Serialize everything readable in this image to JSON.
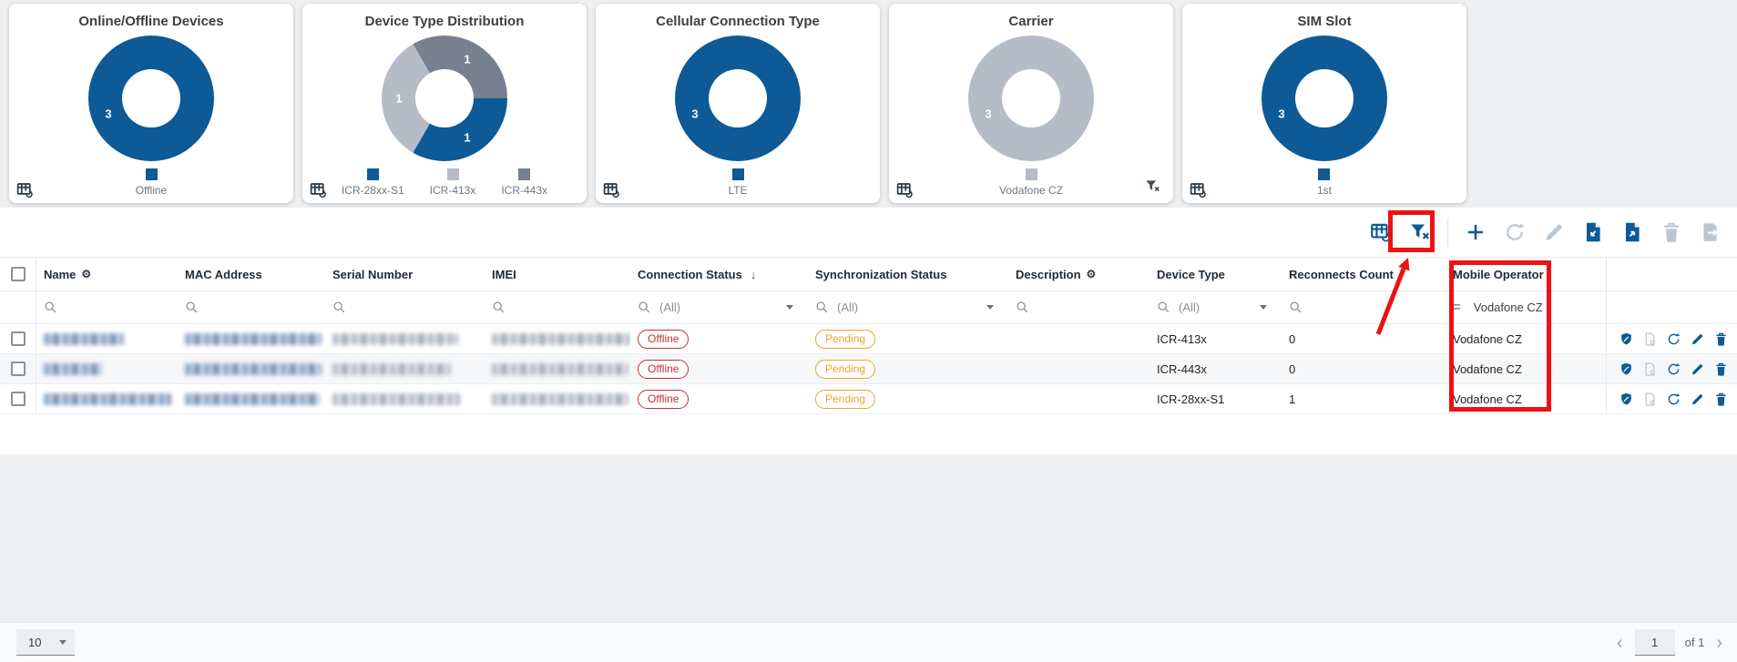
{
  "colors": {
    "primary": "#0d5a96",
    "seg_dark": "#76808f",
    "seg_light": "#b5bcc8",
    "disabled_icon": "#b9c7d2",
    "annotation": "#ee1111",
    "offline": "#c62f2f",
    "pending": "#f0a22e"
  },
  "cards": [
    {
      "title": "Online/Offline Devices",
      "donut": {
        "start": 0,
        "segments": [
          {
            "label": "Offline",
            "value": 3,
            "color": "primary",
            "angle": 250
          }
        ]
      },
      "legend": [
        {
          "label": "Offline",
          "color": "primary"
        }
      ],
      "corner_icon": "grid-sync-icon",
      "filter_icon": false
    },
    {
      "title": "Device Type Distribution",
      "donut": {
        "start": -30,
        "segments": [
          {
            "label": "ICR-443x",
            "value": 1,
            "color": "seg_dark",
            "angle": 30
          },
          {
            "label": "ICR-28xx-S1",
            "value": 1,
            "color": "primary",
            "angle": 150
          },
          {
            "label": "ICR-413x",
            "value": 1,
            "color": "seg_light",
            "angle": 270
          }
        ]
      },
      "legend": [
        {
          "label": "ICR-28xx-S1",
          "color": "primary"
        },
        {
          "label": "ICR-413x",
          "color": "seg_light"
        },
        {
          "label": "ICR-443x",
          "color": "seg_dark"
        }
      ],
      "corner_icon": "grid-sync-icon",
      "filter_icon": false
    },
    {
      "title": "Cellular Connection Type",
      "donut": {
        "start": 0,
        "segments": [
          {
            "label": "LTE",
            "value": 3,
            "color": "primary",
            "angle": 250
          }
        ]
      },
      "legend": [
        {
          "label": "LTE",
          "color": "primary"
        }
      ],
      "corner_icon": "grid-sync-icon",
      "filter_icon": false
    },
    {
      "title": "Carrier",
      "donut": {
        "start": 0,
        "segments": [
          {
            "label": "Vodafone CZ",
            "value": 3,
            "color": "seg_light",
            "angle": 250
          }
        ]
      },
      "legend": [
        {
          "label": "Vodafone CZ",
          "color": "seg_light"
        }
      ],
      "corner_icon": "grid-sync-icon",
      "filter_icon": true
    },
    {
      "title": "SIM Slot",
      "donut": {
        "start": 0,
        "segments": [
          {
            "label": "1st",
            "value": 3,
            "color": "primary",
            "angle": 250
          }
        ]
      },
      "legend": [
        {
          "label": "1st",
          "color": "primary"
        }
      ],
      "corner_icon": "grid-sync-icon",
      "filter_icon": false
    }
  ],
  "toolbar": {
    "icons": [
      {
        "name": "table-settings-sync-icon",
        "icon": "grid",
        "enabled": true
      },
      {
        "name": "clear-filters-icon",
        "icon": "filterx",
        "enabled": true,
        "annotated": true
      },
      {
        "divider": true
      },
      {
        "name": "add-device-icon",
        "icon": "plus",
        "enabled": true
      },
      {
        "name": "refresh-icon",
        "icon": "refresh",
        "enabled": false
      },
      {
        "name": "edit-icon",
        "icon": "pencil",
        "enabled": false
      },
      {
        "name": "import-file-icon",
        "icon": "docin",
        "enabled": true
      },
      {
        "name": "export-file-icon",
        "icon": "docout",
        "enabled": true
      },
      {
        "name": "delete-icon",
        "icon": "trash",
        "enabled": false
      },
      {
        "name": "save-file-icon",
        "icon": "docright",
        "enabled": false
      }
    ]
  },
  "table": {
    "columns": [
      {
        "key": "name",
        "label": "Name",
        "gear": true,
        "filter": "search"
      },
      {
        "key": "mac",
        "label": "MAC Address",
        "filter": "search"
      },
      {
        "key": "serial",
        "label": "Serial Number",
        "filter": "search"
      },
      {
        "key": "imei",
        "label": "IMEI",
        "filter": "search"
      },
      {
        "key": "connection_status",
        "label": "Connection Status",
        "sort": "desc",
        "filter": "select",
        "filter_value": "(All)"
      },
      {
        "key": "sync_status",
        "label": "Synchronization Status",
        "filter": "select",
        "filter_value": "(All)"
      },
      {
        "key": "description",
        "label": "Description",
        "gear": true,
        "filter": "search"
      },
      {
        "key": "device_type",
        "label": "Device Type",
        "filter": "select",
        "filter_value": "(All)"
      },
      {
        "key": "reconnects",
        "label": "Reconnects Count",
        "filter": "search"
      },
      {
        "key": "mobile_operator",
        "label": "Mobile Operator",
        "filter": "equals",
        "filter_value": "Vodafone CZ"
      }
    ],
    "rows": [
      {
        "connection_status": "Offline",
        "sync_status": "Pending",
        "description": "",
        "device_type": "ICR-413x",
        "reconnects": "0",
        "mobile_operator": "Vodafone CZ",
        "redacted_fields": [
          "name",
          "mac",
          "serial",
          "imei"
        ]
      },
      {
        "connection_status": "Offline",
        "sync_status": "Pending",
        "description": "",
        "device_type": "ICR-443x",
        "reconnects": "0",
        "mobile_operator": "Vodafone CZ",
        "redacted_fields": [
          "name",
          "mac",
          "serial",
          "imei"
        ]
      },
      {
        "connection_status": "Offline",
        "sync_status": "Pending",
        "description": "",
        "device_type": "ICR-28xx-S1",
        "reconnects": "1",
        "mobile_operator": "Vodafone CZ",
        "redacted_fields": [
          "name",
          "mac",
          "serial",
          "imei"
        ]
      }
    ],
    "row_actions": [
      {
        "name": "security-shield-icon",
        "icon": "shield",
        "enabled": true
      },
      {
        "name": "config-file-icon",
        "icon": "docgear",
        "enabled": false
      },
      {
        "name": "reboot-icon",
        "icon": "refresh",
        "enabled": true
      },
      {
        "name": "edit-row-icon",
        "icon": "pencil",
        "enabled": true
      },
      {
        "name": "delete-row-icon",
        "icon": "trash",
        "enabled": true
      }
    ]
  },
  "pagination": {
    "size": "10",
    "prev": "‹",
    "current": "1",
    "of_label": "of 1",
    "next": "›"
  }
}
